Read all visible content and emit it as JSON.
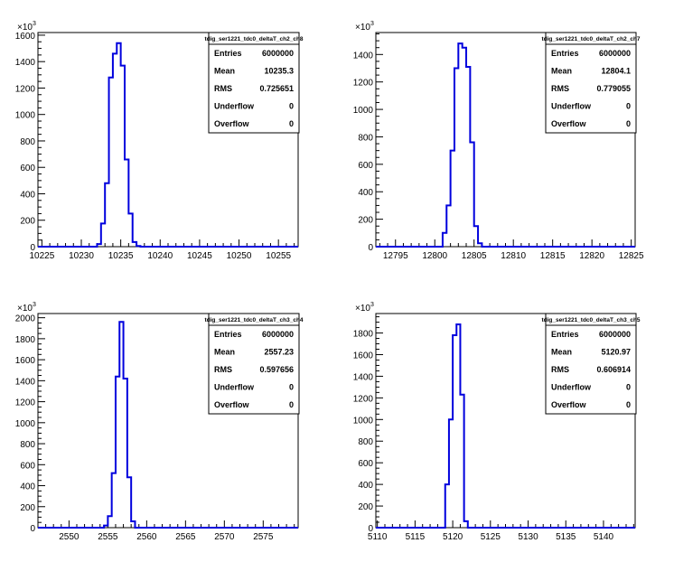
{
  "chart_data": [
    {
      "type": "histogram",
      "title": "tdig_ser1221_tdc0_deltaT_ch2_ch8",
      "xlim": [
        10224.5,
        10257.5
      ],
      "ylim": [
        0,
        1620
      ],
      "y_exponent_label": "10",
      "y_exponent_power": "3",
      "x_ticks": [
        {
          "v": 10225,
          "t": "10225"
        },
        {
          "v": 10230,
          "t": "10230"
        },
        {
          "v": 10235,
          "t": "10235"
        },
        {
          "v": 10240,
          "t": "10240"
        },
        {
          "v": 10245,
          "t": "10245"
        },
        {
          "v": 10250,
          "t": "10250"
        },
        {
          "v": 10255,
          "t": "10255"
        }
      ],
      "y_ticks": [
        {
          "v": 0,
          "t": "0"
        },
        {
          "v": 200,
          "t": "200"
        },
        {
          "v": 400,
          "t": "400"
        },
        {
          "v": 600,
          "t": "600"
        },
        {
          "v": 800,
          "t": "800"
        },
        {
          "v": 1000,
          "t": "1000"
        },
        {
          "v": 1200,
          "t": "1200"
        },
        {
          "v": 1400,
          "t": "1400"
        },
        {
          "v": 1600,
          "t": "1600"
        }
      ],
      "bin_edges": [
        10231.5,
        10232,
        10232.5,
        10233,
        10233.5,
        10234,
        10234.5,
        10235,
        10235.5,
        10236,
        10236.5,
        10237,
        10237.5,
        10238
      ],
      "counts": [
        0,
        20,
        175,
        480,
        1280,
        1460,
        1540,
        1370,
        660,
        250,
        35,
        5,
        0
      ],
      "stats": [
        {
          "label": "Entries",
          "value": "6000000"
        },
        {
          "label": "Mean",
          "value": "10235.3"
        },
        {
          "label": "RMS",
          "value": "0.725651"
        },
        {
          "label": "Underflow",
          "value": "0"
        },
        {
          "label": "Overflow",
          "value": "0"
        }
      ]
    },
    {
      "type": "histogram",
      "title": "tdig_ser1221_tdc0_deltaT_ch2_ch7",
      "xlim": [
        12792.5,
        12825.5
      ],
      "ylim": [
        0,
        1560
      ],
      "y_exponent_label": "10",
      "y_exponent_power": "3",
      "x_ticks": [
        {
          "v": 12795,
          "t": "12795"
        },
        {
          "v": 12800,
          "t": "12800"
        },
        {
          "v": 12805,
          "t": "12805"
        },
        {
          "v": 12810,
          "t": "12810"
        },
        {
          "v": 12815,
          "t": "12815"
        },
        {
          "v": 12820,
          "t": "12820"
        },
        {
          "v": 12825,
          "t": "12825"
        }
      ],
      "y_ticks": [
        {
          "v": 0,
          "t": "0"
        },
        {
          "v": 200,
          "t": "200"
        },
        {
          "v": 400,
          "t": "400"
        },
        {
          "v": 600,
          "t": "600"
        },
        {
          "v": 800,
          "t": "800"
        },
        {
          "v": 1000,
          "t": "1000"
        },
        {
          "v": 1200,
          "t": "1200"
        },
        {
          "v": 1400,
          "t": "1400"
        }
      ],
      "bin_edges": [
        12800.5,
        12801,
        12801.5,
        12802,
        12802.5,
        12803,
        12803.5,
        12804,
        12804.5,
        12805,
        12805.5,
        12806,
        12806.5
      ],
      "counts": [
        0,
        100,
        300,
        700,
        1300,
        1480,
        1450,
        1310,
        760,
        150,
        25,
        0
      ],
      "stats": [
        {
          "label": "Entries",
          "value": "6000000"
        },
        {
          "label": "Mean",
          "value": "12804.1"
        },
        {
          "label": "RMS",
          "value": "0.779055"
        },
        {
          "label": "Underflow",
          "value": "0"
        },
        {
          "label": "Overflow",
          "value": "0"
        }
      ]
    },
    {
      "type": "histogram",
      "title": "tdig_ser1221_tdc0_deltaT_ch3_ch4",
      "xlim": [
        2546,
        2579.5
      ],
      "ylim": [
        0,
        2040
      ],
      "y_exponent_label": "10",
      "y_exponent_power": "3",
      "x_ticks": [
        {
          "v": 2550,
          "t": "2550"
        },
        {
          "v": 2555,
          "t": "2555"
        },
        {
          "v": 2560,
          "t": "2560"
        },
        {
          "v": 2565,
          "t": "2565"
        },
        {
          "v": 2570,
          "t": "2570"
        },
        {
          "v": 2575,
          "t": "2575"
        }
      ],
      "y_ticks": [
        {
          "v": 0,
          "t": "0"
        },
        {
          "v": 200,
          "t": "200"
        },
        {
          "v": 400,
          "t": "400"
        },
        {
          "v": 600,
          "t": "600"
        },
        {
          "v": 800,
          "t": "800"
        },
        {
          "v": 1000,
          "t": "1000"
        },
        {
          "v": 1200,
          "t": "1200"
        },
        {
          "v": 1400,
          "t": "1400"
        },
        {
          "v": 1600,
          "t": "1600"
        },
        {
          "v": 1800,
          "t": "1800"
        },
        {
          "v": 2000,
          "t": "2000"
        }
      ],
      "bin_edges": [
        2554.5,
        2555,
        2555.5,
        2556,
        2556.5,
        2557,
        2557.5,
        2558,
        2558.5,
        2559
      ],
      "counts": [
        20,
        110,
        520,
        1440,
        1960,
        1420,
        480,
        60,
        0
      ],
      "stats": [
        {
          "label": "Entries",
          "value": "6000000"
        },
        {
          "label": "Mean",
          "value": "2557.23"
        },
        {
          "label": "RMS",
          "value": "0.597656"
        },
        {
          "label": "Underflow",
          "value": "0"
        },
        {
          "label": "Overflow",
          "value": "0"
        }
      ]
    },
    {
      "type": "histogram",
      "title": "tdig_ser1221_tdc0_deltaT_ch3_ch5",
      "xlim": [
        5109.8,
        5144.2
      ],
      "ylim": [
        0,
        1980
      ],
      "y_exponent_label": "10",
      "y_exponent_power": "3",
      "x_ticks": [
        {
          "v": 5110,
          "t": "5110"
        },
        {
          "v": 5115,
          "t": "5115"
        },
        {
          "v": 5120,
          "t": "5120"
        },
        {
          "v": 5125,
          "t": "5125"
        },
        {
          "v": 5130,
          "t": "5130"
        },
        {
          "v": 5135,
          "t": "5135"
        },
        {
          "v": 5140,
          "t": "5140"
        }
      ],
      "y_ticks": [
        {
          "v": 0,
          "t": "0"
        },
        {
          "v": 200,
          "t": "200"
        },
        {
          "v": 400,
          "t": "400"
        },
        {
          "v": 600,
          "t": "600"
        },
        {
          "v": 800,
          "t": "800"
        },
        {
          "v": 1000,
          "t": "1000"
        },
        {
          "v": 1200,
          "t": "1200"
        },
        {
          "v": 1400,
          "t": "1400"
        },
        {
          "v": 1600,
          "t": "1600"
        },
        {
          "v": 1800,
          "t": "1800"
        }
      ],
      "bin_edges": [
        5119,
        5119.5,
        5120,
        5120.5,
        5121,
        5121.5,
        5122,
        5122.5
      ],
      "counts": [
        400,
        1000,
        1780,
        1880,
        1230,
        60,
        0
      ],
      "stats": [
        {
          "label": "Entries",
          "value": "6000000"
        },
        {
          "label": "Mean",
          "value": "5120.97"
        },
        {
          "label": "RMS",
          "value": "0.606914"
        },
        {
          "label": "Underflow",
          "value": "0"
        },
        {
          "label": "Overflow",
          "value": "0"
        }
      ]
    }
  ],
  "colors": {
    "histogram_line": "#0000dd",
    "axis": "#000000",
    "background": "#ffffff"
  }
}
